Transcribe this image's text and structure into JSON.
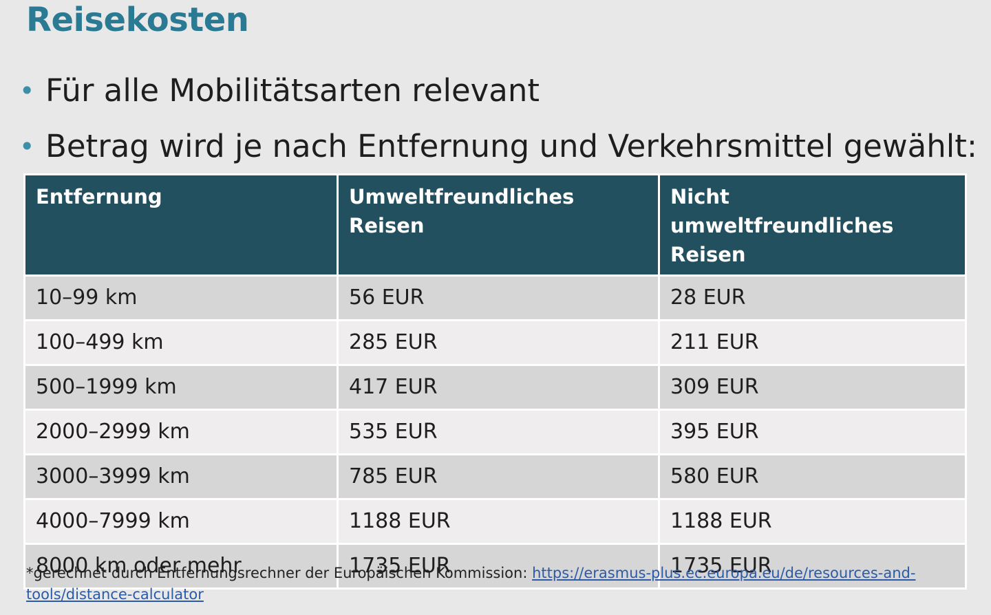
{
  "title": "Reisekosten",
  "bullets": [
    "Für alle Mobilitätsarten relevant",
    "Betrag wird je nach Entfernung und Verkehrsmittel gewählt:"
  ],
  "table": {
    "headers": [
      "Entfernung",
      "Umweltfreundliches Reisen",
      "Nicht umweltfreundliches Reisen"
    ],
    "rows": [
      [
        "10–99 km",
        "56 EUR",
        "28 EUR"
      ],
      [
        "100–499 km",
        "285 EUR",
        "211 EUR"
      ],
      [
        "500–1999 km",
        "417 EUR",
        "309 EUR"
      ],
      [
        "2000–2999 km",
        "535 EUR",
        "395 EUR"
      ],
      [
        "3000–3999 km",
        "785 EUR",
        "580 EUR"
      ],
      [
        "4000–7999 km",
        "1188 EUR",
        "1188 EUR"
      ],
      [
        "8000 km oder mehr",
        "1735 EUR",
        "1735 EUR"
      ]
    ]
  },
  "footnote": {
    "text": "*gerechnet durch Entfernungsrechner der Europäischen Kommission: ",
    "link_text": "https://erasmus-plus.ec.europa.eu/de/resources-and-tools/distance-calculator",
    "link_href": "https://erasmus-plus.ec.europa.eu/de/resources-and-tools/distance-calculator"
  },
  "colors": {
    "title": "#2a7a94",
    "header_bg": "#23505f",
    "row_odd": "#d6d6d6",
    "row_even": "#efedee",
    "bullet": "#3d8fa8"
  }
}
